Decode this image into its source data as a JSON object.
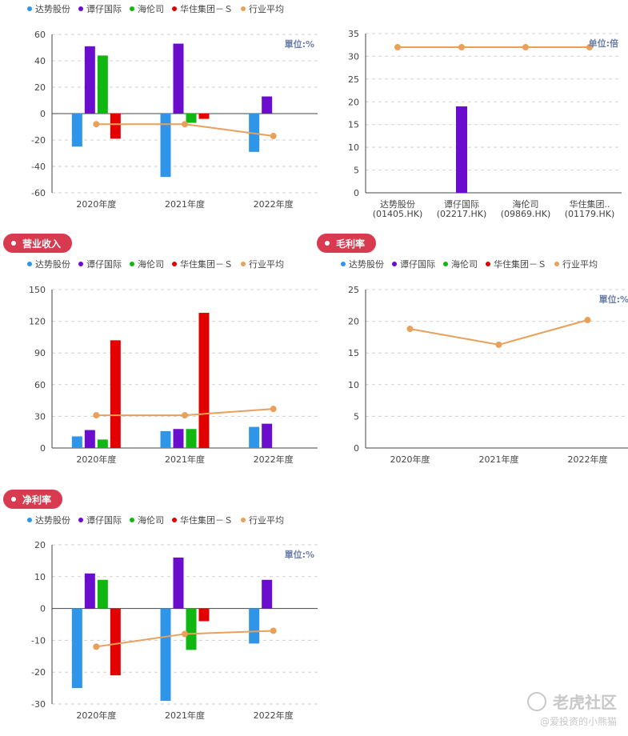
{
  "colors": {
    "s0": "#2f95e8",
    "s1": "#6a0dcc",
    "s2": "#11b711",
    "s3": "#e30000",
    "avg": "#e8a05a",
    "pill": "#d83a4f"
  },
  "legend": [
    {
      "label": "达势股份",
      "color": "#2f95e8"
    },
    {
      "label": "谭仔国际",
      "color": "#6a0dcc"
    },
    {
      "label": "海伦司",
      "color": "#11b711"
    },
    {
      "label": "华住集团－Ｓ",
      "color": "#e30000"
    },
    {
      "label": "行业平均",
      "color": "#e8a05a"
    }
  ],
  "pills": {
    "revenue": "营业收入",
    "gross_margin": "毛利率",
    "net_margin": "净利率"
  },
  "watermark": {
    "main": "老虎社区",
    "sub": "@爱投资的小熊猫"
  },
  "chart_data": [
    {
      "id": "chart1",
      "type": "bar",
      "unit": "單位:%",
      "categories": [
        "2020年度",
        "2021年度",
        "2022年度"
      ],
      "ylim": [
        -60,
        60
      ],
      "yticks": [
        60,
        40,
        20,
        0,
        -20,
        -40,
        -60
      ],
      "series": [
        {
          "name": "达势股份",
          "values": [
            -25,
            -48,
            -29
          ]
        },
        {
          "name": "谭仔国际",
          "values": [
            51,
            53,
            13
          ]
        },
        {
          "name": "海伦司",
          "values": [
            44,
            -7,
            null
          ]
        },
        {
          "name": "华住集团－Ｓ",
          "values": [
            -19,
            -4,
            null
          ]
        }
      ],
      "line": {
        "name": "行业平均",
        "values": [
          -8,
          -8,
          -17
        ]
      }
    },
    {
      "id": "chart2",
      "type": "bar",
      "unit": "单位:倍",
      "categories": [
        "达势股份\n(01405.HK)",
        "谭仔国际\n(02217.HK)",
        "海伦司\n(09869.HK)",
        "华住集团..\n(01179.HK)"
      ],
      "ylim": [
        0,
        35
      ],
      "yticks": [
        35,
        30,
        25,
        20,
        15,
        10,
        5,
        0
      ],
      "values": [
        0,
        19,
        0,
        0
      ],
      "bar_color": "#6a0dcc",
      "line": {
        "name": "行业平均",
        "values": [
          32,
          32,
          32,
          32
        ]
      }
    },
    {
      "id": "chart3",
      "type": "bar",
      "unit": "",
      "categories": [
        "2020年度",
        "2021年度",
        "2022年度"
      ],
      "ylim": [
        0,
        150
      ],
      "yticks": [
        150,
        120,
        90,
        60,
        30,
        0
      ],
      "series": [
        {
          "name": "达势股份",
          "values": [
            11,
            16,
            20
          ]
        },
        {
          "name": "谭仔国际",
          "values": [
            17,
            18,
            23
          ]
        },
        {
          "name": "海伦司",
          "values": [
            8,
            18,
            null
          ]
        },
        {
          "name": "华住集团－Ｓ",
          "values": [
            102,
            128,
            null
          ]
        }
      ],
      "line": {
        "name": "行业平均",
        "values": [
          31,
          31,
          37
        ]
      }
    },
    {
      "id": "chart4",
      "type": "line",
      "unit": "單位:%",
      "categories": [
        "2020年度",
        "2021年度",
        "2022年度"
      ],
      "ylim": [
        0,
        25
      ],
      "yticks": [
        25,
        20,
        15,
        10,
        5,
        0
      ],
      "series": [],
      "line": {
        "name": "行业平均",
        "values": [
          18.8,
          16.3,
          20.2
        ]
      }
    },
    {
      "id": "chart5",
      "type": "bar",
      "unit": "單位:%",
      "categories": [
        "2020年度",
        "2021年度",
        "2022年度"
      ],
      "ylim": [
        -30,
        20
      ],
      "yticks": [
        20,
        10,
        0,
        -10,
        -20,
        -30
      ],
      "series": [
        {
          "name": "达势股份",
          "values": [
            -25,
            -29,
            -11
          ]
        },
        {
          "name": "谭仔国际",
          "values": [
            11,
            16,
            9
          ]
        },
        {
          "name": "海伦司",
          "values": [
            9,
            -13,
            null
          ]
        },
        {
          "name": "华住集团－Ｓ",
          "values": [
            -21,
            -4,
            null
          ]
        }
      ],
      "line": {
        "name": "行业平均",
        "values": [
          -12,
          -8,
          -7
        ]
      }
    }
  ]
}
